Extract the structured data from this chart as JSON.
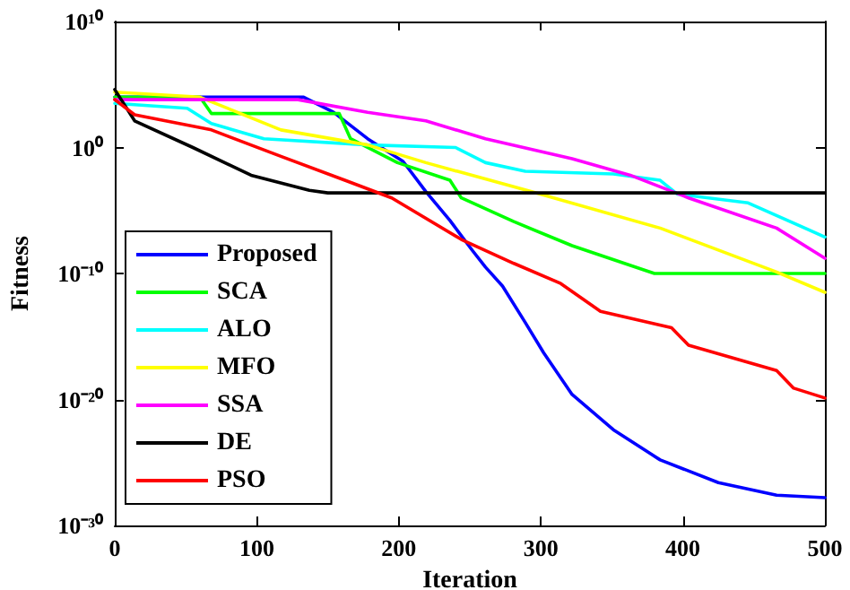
{
  "chart_data": {
    "type": "line",
    "xlabel": "Iteration",
    "ylabel": "Fitness",
    "xlim": [
      0,
      500
    ],
    "xticks": [
      0,
      100,
      200,
      300,
      400,
      500
    ],
    "ylim": [
      1e-30,
      10000000000.0
    ],
    "yticks": [
      {
        "value": 1e-30,
        "label": "10⁻³⁰"
      },
      {
        "value": 1e-20,
        "label": "10⁻²⁰"
      },
      {
        "value": 1e-10,
        "label": "10⁻¹⁰"
      },
      {
        "value": 1,
        "label": "10⁰"
      },
      {
        "value": 10000000000.0,
        "label": "10¹⁰"
      }
    ],
    "log": "y",
    "grid": false,
    "legend": "bottom left",
    "marker": "none",
    "line_style": "solid",
    "series": [
      {
        "name": "Proposed",
        "color": "#0000ff",
        "x": [
          0,
          133,
          154,
          178,
          203,
          219,
          236,
          252,
          261,
          273,
          289,
          302,
          322,
          351,
          384,
          425,
          466,
          500
        ],
        "values": [
          10000.0,
          10000.0,
          630,
          5,
          0.079,
          0.00032,
          1.6e-06,
          6.3e-09,
          3.2e-10,
          1e-11,
          1.3e-14,
          5e-17,
          2.5e-20,
          4e-23,
          1.6e-25,
          2.5e-27,
          2.5e-28,
          1.6e-28
        ]
      },
      {
        "name": "SCA",
        "color": "#00ff00",
        "x": [
          0,
          60,
          68,
          158,
          166,
          199,
          236,
          244,
          281,
          322,
          372,
          380,
          500
        ],
        "values": [
          10000.0,
          10000.0,
          500,
          500,
          5,
          0.063,
          0.0025,
          0.0001,
          1.3e-06,
          1.6e-08,
          2e-10,
          1e-10,
          1e-10
        ]
      },
      {
        "name": "ALO",
        "color": "#00ffff",
        "x": [
          0,
          51,
          68,
          105,
          178,
          240,
          261,
          289,
          351,
          384,
          396,
          446,
          500
        ],
        "values": [
          3200,
          1300,
          79,
          5,
          1.6,
          1,
          0.063,
          0.013,
          0.008,
          0.0025,
          0.0002,
          4e-05,
          7.9e-08
        ]
      },
      {
        "name": "MFO",
        "color": "#ffff00",
        "x": [
          0,
          60,
          117,
          178,
          219,
          293,
          384,
          466,
          500
        ],
        "values": [
          25000.0,
          10000.0,
          25,
          1.6,
          0.063,
          0.00032,
          4e-07,
          1.3e-10,
          3.2e-12
        ]
      },
      {
        "name": "SSA",
        "color": "#ff00ff",
        "x": [
          0,
          129,
          178,
          219,
          261,
          322,
          363,
          404,
          466,
          500
        ],
        "values": [
          6300,
          6300,
          630,
          130,
          5,
          0.13,
          0.0063,
          0.0001,
          4e-07,
          1.6e-09
        ]
      },
      {
        "name": "DE",
        "color": "#000000",
        "x": [
          0,
          14,
          55,
          96,
          137,
          150,
          500
        ],
        "values": [
          40000.0,
          130,
          1,
          0.0063,
          0.0004,
          0.00025,
          0.00025
        ]
      },
      {
        "name": "PSO",
        "color": "#ff0000",
        "x": [
          0,
          14,
          68,
          117,
          162,
          195,
          244,
          281,
          314,
          342,
          392,
          404,
          466,
          478,
          500
        ],
        "values": [
          6300,
          400,
          25,
          0.2,
          0.0025,
          0.0001,
          5e-08,
          6.3e-10,
          1.6e-11,
          1e-13,
          5e-15,
          2e-16,
          2e-18,
          7.9e-20,
          1.3e-20
        ]
      }
    ]
  }
}
